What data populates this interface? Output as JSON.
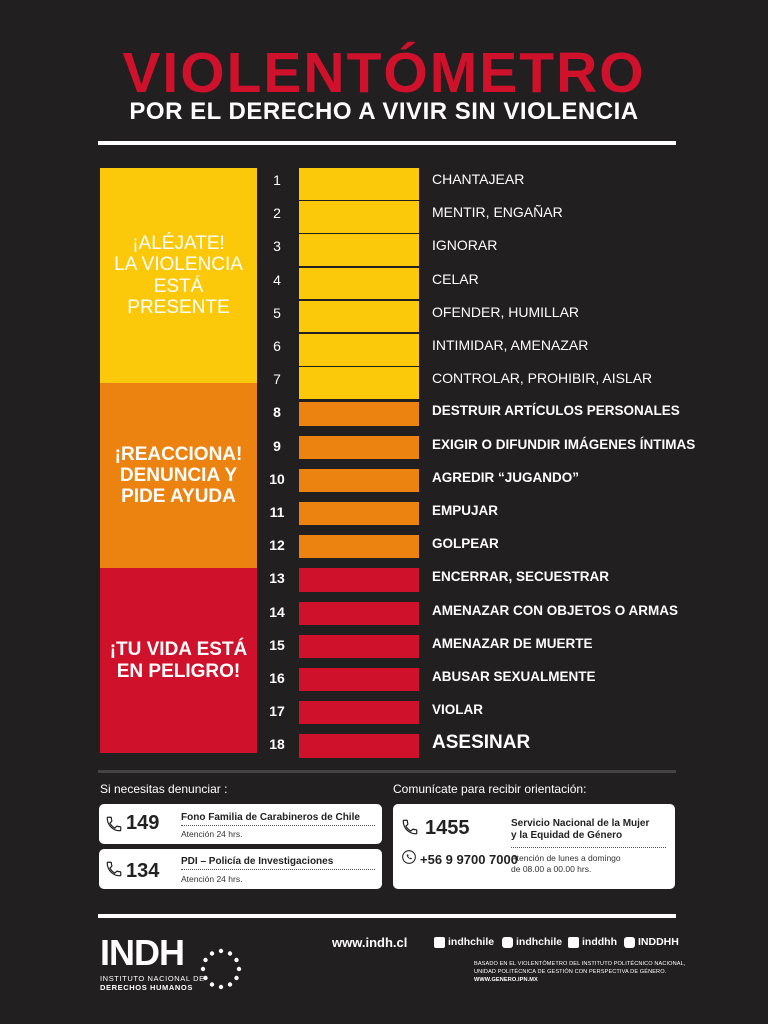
{
  "header": {
    "title": "VIOLENTÓMETRO",
    "subtitle": "POR EL DERECHO A VIVIR SIN VIOLENCIA"
  },
  "colors": {
    "yellow": "#fcc90a",
    "orange": "#ec8311",
    "red": "#d0112b",
    "background": "#221f20"
  },
  "zones": [
    {
      "lines": [
        "¡ALÉJATE!",
        "LA VIOLENCIA",
        "ESTÁ PRESENTE"
      ]
    },
    {
      "lines": [
        "¡REACCIONA!",
        "DENUNCIA Y",
        "PIDE AYUDA"
      ]
    },
    {
      "lines": [
        "¡TU VIDA ESTÁ",
        "EN PELIGRO!"
      ]
    }
  ],
  "levels": [
    {
      "n": "1",
      "label": "CHANTAJEAR",
      "zone": 0
    },
    {
      "n": "2",
      "label": "MENTIR, ENGAÑAR",
      "zone": 0
    },
    {
      "n": "3",
      "label": "IGNORAR",
      "zone": 0
    },
    {
      "n": "4",
      "label": "CELAR",
      "zone": 0
    },
    {
      "n": "5",
      "label": "OFENDER, HUMILLAR",
      "zone": 0
    },
    {
      "n": "6",
      "label": "INTIMIDAR, AMENAZAR",
      "zone": 0
    },
    {
      "n": "7",
      "label": "CONTROLAR, PROHIBIR, AISLAR",
      "zone": 0
    },
    {
      "n": "8",
      "label": "DESTRUIR ARTÍCULOS PERSONALES",
      "zone": 1
    },
    {
      "n": "9",
      "label": "EXIGIR O DIFUNDIR IMÁGENES ÍNTIMAS",
      "zone": 1
    },
    {
      "n": "10",
      "label": "AGREDIR “JUGANDO”",
      "zone": 1
    },
    {
      "n": "11",
      "label": "EMPUJAR",
      "zone": 1
    },
    {
      "n": "12",
      "label": "GOLPEAR",
      "zone": 1
    },
    {
      "n": "13",
      "label": "ENCERRAR, SECUESTRAR",
      "zone": 2
    },
    {
      "n": "14",
      "label": "AMENAZAR CON OBJETOS O ARMAS",
      "zone": 2
    },
    {
      "n": "15",
      "label": "AMENAZAR DE MUERTE",
      "zone": 2
    },
    {
      "n": "16",
      "label": "ABUSAR SEXUALMENTE",
      "zone": 2
    },
    {
      "n": "17",
      "label": "VIOLAR",
      "zone": 2
    },
    {
      "n": "18",
      "label": "ASESINAR",
      "zone": 2
    }
  ],
  "contacts": {
    "denounce_heading": "Si necesitas denunciar :",
    "guidance_heading": "Comunícate para recibir orientación:",
    "carabineros": {
      "number": "149",
      "name": "Fono Familia de Carabineros de Chile",
      "hours": "Atención 24 hrs."
    },
    "pdi": {
      "number": "134",
      "name": "PDI – Policía de Investigaciones",
      "hours": "Atención 24 hrs."
    },
    "sernam": {
      "number": "1455",
      "whatsapp": "+56 9 9700 7000",
      "name_line1": "Servicio Nacional de la Mujer",
      "name_line2": "y la Equidad de Género",
      "hours_line1": "Atención de lunes a domingo",
      "hours_line2": "de 08.00 a 00.00 hrs."
    }
  },
  "footer": {
    "logo": "INDH",
    "logo_line1": "INSTITUTO NACIONAL DE",
    "logo_line2": "DERECHOS HUMANOS",
    "website": "www.indh.cl",
    "facebook": "indhchile",
    "instagram": "indhchile",
    "twitter": "inddhh",
    "youtube": "INDDHH",
    "note_line1": "BASADO EN EL VIOLENTÓMETRO DEL INSTITUTO POLITÉCNICO NACIONAL,",
    "note_line2": "UNIDAD POLITÉCNICA DE GESTIÓN CON PERSPECTIVA DE GÉNERO.",
    "note_line3": "WWW.GENERO.IPN.MX"
  }
}
